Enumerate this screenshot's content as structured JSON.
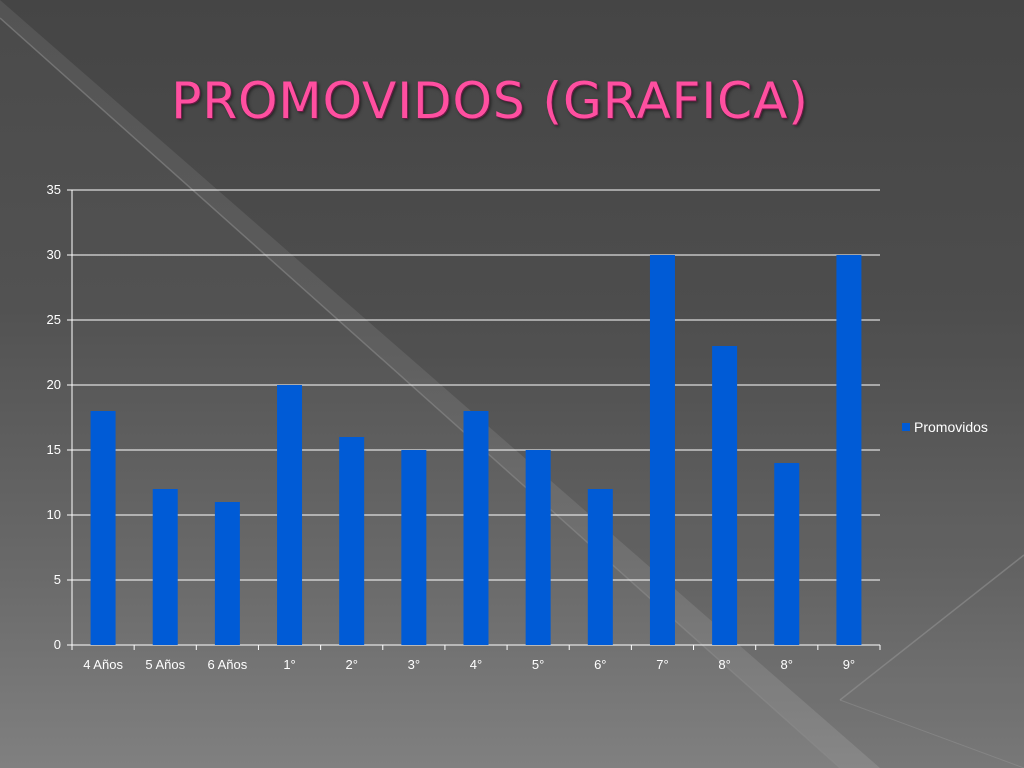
{
  "slide": {
    "title": "PROMOVIDOS (GRAFICA)"
  },
  "colors": {
    "bar": "#005bd6",
    "title": "#ff4fa0",
    "gridline": "#ffffff",
    "text": "#ffffff"
  },
  "chart_data": {
    "type": "bar",
    "categories": [
      "4 Años",
      "5 Años",
      "6 Años",
      "1°",
      "2°",
      "3°",
      "4°",
      "5°",
      "6°",
      "7°",
      "8°",
      "8°",
      "9°"
    ],
    "series": [
      {
        "name": "Promovidos",
        "values": [
          18,
          12,
          11,
          20,
          16,
          15,
          18,
          15,
          12,
          30,
          23,
          14,
          30
        ]
      }
    ],
    "ylim": [
      0,
      35
    ],
    "yticks": [
      0,
      5,
      10,
      15,
      20,
      25,
      30,
      35
    ],
    "grid": true,
    "legend_position": "right"
  }
}
